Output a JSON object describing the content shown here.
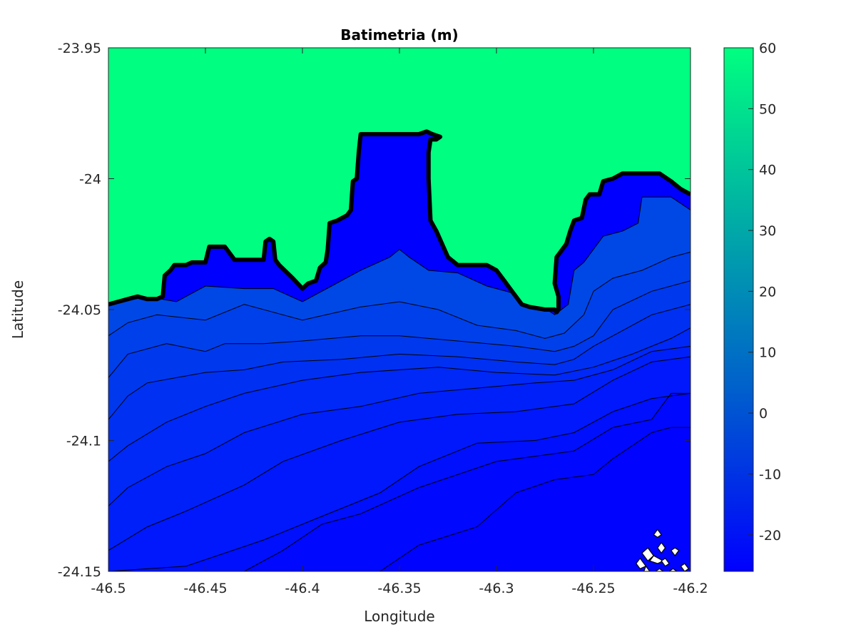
{
  "chart_data": {
    "type": "contour",
    "title": "Batimetria (m)",
    "xlabel": "Longitude",
    "ylabel": "Latitude",
    "xlim": [
      -46.5,
      -46.2
    ],
    "ylim": [
      -24.15,
      -23.95
    ],
    "xticks": [
      -46.5,
      -46.45,
      -46.4,
      -46.35,
      -46.3,
      -46.25,
      -46.2
    ],
    "xtick_labels": [
      "-46.5",
      "-46.45",
      "-46.4",
      "-46.35",
      "-46.3",
      "-46.25",
      "-46.2"
    ],
    "yticks": [
      -23.95,
      -24,
      -24.05,
      -24.1,
      -24.15
    ],
    "ytick_labels": [
      "-23.95",
      "-24",
      "-24.05",
      "-24.1",
      "-24.15"
    ],
    "grid": false,
    "colorbar": {
      "limits": [
        -26,
        60
      ],
      "ticks": [
        60,
        50,
        40,
        30,
        20,
        10,
        0,
        -10,
        -20
      ],
      "tick_labels": [
        "60",
        "50",
        "40",
        "30",
        "20",
        "10",
        "0",
        "-10",
        "-20"
      ],
      "colors": {
        "low": "#0000ff",
        "high": "#00ff80"
      }
    },
    "land_color": "#00ff80",
    "coastline": {
      "level": 0,
      "color": "#000000",
      "points": [
        [
          -46.5,
          -24.048
        ],
        [
          -46.495,
          -24.047
        ],
        [
          -46.49,
          -24.046
        ],
        [
          -46.485,
          -24.045
        ],
        [
          -46.48,
          -24.046
        ],
        [
          -46.475,
          -24.046
        ],
        [
          -46.472,
          -24.045
        ],
        [
          -46.471,
          -24.037
        ],
        [
          -46.468,
          -24.035
        ],
        [
          -46.466,
          -24.033
        ],
        [
          -46.46,
          -24.033
        ],
        [
          -46.457,
          -24.032
        ],
        [
          -46.45,
          -24.032
        ],
        [
          -46.448,
          -24.026
        ],
        [
          -46.44,
          -24.026
        ],
        [
          -46.437,
          -24.029
        ],
        [
          -46.435,
          -24.031
        ],
        [
          -46.428,
          -24.031
        ],
        [
          -46.42,
          -24.031
        ],
        [
          -46.419,
          -24.024
        ],
        [
          -46.417,
          -24.023
        ],
        [
          -46.415,
          -24.024
        ],
        [
          -46.414,
          -24.031
        ],
        [
          -46.412,
          -24.033
        ],
        [
          -46.405,
          -24.038
        ],
        [
          -46.4,
          -24.042
        ],
        [
          -46.397,
          -24.04
        ],
        [
          -46.393,
          -24.039
        ],
        [
          -46.391,
          -24.034
        ],
        [
          -46.388,
          -24.032
        ],
        [
          -46.387,
          -24.027
        ],
        [
          -46.386,
          -24.017
        ],
        [
          -46.382,
          -24.016
        ],
        [
          -46.377,
          -24.014
        ],
        [
          -46.375,
          -24.012
        ],
        [
          -46.374,
          -24.001
        ],
        [
          -46.372,
          -24.0
        ],
        [
          -46.371,
          -23.99
        ],
        [
          -46.37,
          -23.983
        ],
        [
          -46.365,
          -23.983
        ],
        [
          -46.355,
          -23.983
        ],
        [
          -46.34,
          -23.983
        ],
        [
          -46.336,
          -23.982
        ],
        [
          -46.333,
          -23.983
        ],
        [
          -46.329,
          -23.984
        ],
        [
          -46.331,
          -23.985
        ],
        [
          -46.334,
          -23.985
        ],
        [
          -46.335,
          -23.99
        ],
        [
          -46.335,
          -24.0
        ],
        [
          -46.334,
          -24.016
        ],
        [
          -46.331,
          -24.02
        ],
        [
          -46.328,
          -24.025
        ],
        [
          -46.325,
          -24.03
        ],
        [
          -46.32,
          -24.033
        ],
        [
          -46.31,
          -24.033
        ],
        [
          -46.305,
          -24.033
        ],
        [
          -46.3,
          -24.035
        ],
        [
          -46.296,
          -24.039
        ],
        [
          -46.293,
          -24.042
        ],
        [
          -46.29,
          -24.045
        ],
        [
          -46.287,
          -24.048
        ],
        [
          -46.283,
          -24.049
        ],
        [
          -46.275,
          -24.05
        ],
        [
          -46.27,
          -24.05
        ],
        [
          -46.269,
          -24.051
        ],
        [
          -46.268,
          -24.05
        ],
        [
          -46.268,
          -24.045
        ],
        [
          -46.27,
          -24.04
        ],
        [
          -46.269,
          -24.03
        ],
        [
          -46.266,
          -24.027
        ],
        [
          -46.264,
          -24.025
        ],
        [
          -46.262,
          -24.02
        ],
        [
          -46.26,
          -24.016
        ],
        [
          -46.256,
          -24.015
        ],
        [
          -46.254,
          -24.008
        ],
        [
          -46.252,
          -24.006
        ],
        [
          -46.247,
          -24.006
        ],
        [
          -46.245,
          -24.001
        ],
        [
          -46.24,
          -24.0
        ],
        [
          -46.235,
          -23.998
        ],
        [
          -46.225,
          -23.998
        ],
        [
          -46.216,
          -23.998
        ],
        [
          -46.21,
          -24.001
        ],
        [
          -46.205,
          -24.004
        ],
        [
          -46.2,
          -24.006
        ]
      ]
    },
    "contour_bands": [
      {
        "name": "band-0",
        "color": "#0048e6",
        "points": [
          [
            -46.5,
            -24.048
          ],
          [
            -46.48,
            -24.045
          ],
          [
            -46.465,
            -24.047
          ],
          [
            -46.45,
            -24.041
          ],
          [
            -46.43,
            -24.042
          ],
          [
            -46.415,
            -24.042
          ],
          [
            -46.4,
            -24.047
          ],
          [
            -46.385,
            -24.041
          ],
          [
            -46.37,
            -24.035
          ],
          [
            -46.355,
            -24.03
          ],
          [
            -46.35,
            -24.027
          ],
          [
            -46.345,
            -24.03
          ],
          [
            -46.335,
            -24.035
          ],
          [
            -46.32,
            -24.036
          ],
          [
            -46.305,
            -24.041
          ],
          [
            -46.29,
            -24.044
          ],
          [
            -46.28,
            -24.047
          ],
          [
            -46.27,
            -24.052
          ],
          [
            -46.263,
            -24.048
          ],
          [
            -46.26,
            -24.035
          ],
          [
            -46.255,
            -24.032
          ],
          [
            -46.245,
            -24.022
          ],
          [
            -46.235,
            -24.02
          ],
          [
            -46.227,
            -24.017
          ],
          [
            -46.225,
            -24.007
          ],
          [
            -46.21,
            -24.007
          ],
          [
            -46.2,
            -24.012
          ]
        ]
      },
      {
        "name": "band-1",
        "color": "#0040ea",
        "points": [
          [
            -46.5,
            -24.06
          ],
          [
            -46.49,
            -24.055
          ],
          [
            -46.475,
            -24.052
          ],
          [
            -46.45,
            -24.054
          ],
          [
            -46.43,
            -24.048
          ],
          [
            -46.4,
            -24.054
          ],
          [
            -46.37,
            -24.049
          ],
          [
            -46.35,
            -24.047
          ],
          [
            -46.33,
            -24.05
          ],
          [
            -46.31,
            -24.056
          ],
          [
            -46.29,
            -24.058
          ],
          [
            -46.275,
            -24.061
          ],
          [
            -46.265,
            -24.059
          ],
          [
            -46.255,
            -24.052
          ],
          [
            -46.25,
            -24.043
          ],
          [
            -46.24,
            -24.038
          ],
          [
            -46.225,
            -24.035
          ],
          [
            -46.21,
            -24.03
          ],
          [
            -46.2,
            -24.028
          ]
        ]
      },
      {
        "name": "band-2",
        "color": "#0038ee",
        "points": [
          [
            -46.5,
            -24.076
          ],
          [
            -46.49,
            -24.067
          ],
          [
            -46.47,
            -24.063
          ],
          [
            -46.45,
            -24.066
          ],
          [
            -46.44,
            -24.063
          ],
          [
            -46.42,
            -24.063
          ],
          [
            -46.4,
            -24.062
          ],
          [
            -46.37,
            -24.06
          ],
          [
            -46.35,
            -24.06
          ],
          [
            -46.32,
            -24.062
          ],
          [
            -46.29,
            -24.064
          ],
          [
            -46.27,
            -24.066
          ],
          [
            -46.26,
            -24.064
          ],
          [
            -46.25,
            -24.06
          ],
          [
            -46.24,
            -24.05
          ],
          [
            -46.22,
            -24.043
          ],
          [
            -46.2,
            -24.039
          ]
        ]
      },
      {
        "name": "band-3",
        "color": "#0030f2",
        "points": [
          [
            -46.5,
            -24.092
          ],
          [
            -46.49,
            -24.083
          ],
          [
            -46.48,
            -24.078
          ],
          [
            -46.45,
            -24.074
          ],
          [
            -46.43,
            -24.073
          ],
          [
            -46.41,
            -24.07
          ],
          [
            -46.38,
            -24.069
          ],
          [
            -46.35,
            -24.067
          ],
          [
            -46.32,
            -24.068
          ],
          [
            -46.29,
            -24.07
          ],
          [
            -46.27,
            -24.071
          ],
          [
            -46.26,
            -24.069
          ],
          [
            -46.25,
            -24.064
          ],
          [
            -46.235,
            -24.058
          ],
          [
            -46.22,
            -24.052
          ],
          [
            -46.2,
            -24.048
          ]
        ]
      },
      {
        "name": "band-4",
        "color": "#0028f6",
        "points": [
          [
            -46.5,
            -24.108
          ],
          [
            -46.49,
            -24.102
          ],
          [
            -46.47,
            -24.093
          ],
          [
            -46.45,
            -24.087
          ],
          [
            -46.43,
            -24.082
          ],
          [
            -46.4,
            -24.077
          ],
          [
            -46.37,
            -24.074
          ],
          [
            -46.33,
            -24.072
          ],
          [
            -46.3,
            -24.074
          ],
          [
            -46.27,
            -24.075
          ],
          [
            -46.25,
            -24.072
          ],
          [
            -46.23,
            -24.067
          ],
          [
            -46.21,
            -24.061
          ],
          [
            -46.2,
            -24.057
          ]
        ]
      },
      {
        "name": "band-5",
        "color": "#0020f9",
        "points": [
          [
            -46.5,
            -24.125
          ],
          [
            -46.49,
            -24.118
          ],
          [
            -46.47,
            -24.11
          ],
          [
            -46.45,
            -24.105
          ],
          [
            -46.43,
            -24.097
          ],
          [
            -46.4,
            -24.09
          ],
          [
            -46.37,
            -24.087
          ],
          [
            -46.34,
            -24.082
          ],
          [
            -46.31,
            -24.08
          ],
          [
            -46.28,
            -24.078
          ],
          [
            -46.26,
            -24.077
          ],
          [
            -46.24,
            -24.073
          ],
          [
            -46.22,
            -24.066
          ],
          [
            -46.2,
            -24.064
          ]
        ]
      },
      {
        "name": "band-6",
        "color": "#0018fb",
        "points": [
          [
            -46.5,
            -24.142
          ],
          [
            -46.48,
            -24.133
          ],
          [
            -46.46,
            -24.127
          ],
          [
            -46.43,
            -24.117
          ],
          [
            -46.41,
            -24.108
          ],
          [
            -46.38,
            -24.1
          ],
          [
            -46.35,
            -24.093
          ],
          [
            -46.32,
            -24.09
          ],
          [
            -46.29,
            -24.089
          ],
          [
            -46.26,
            -24.086
          ],
          [
            -46.24,
            -24.077
          ],
          [
            -46.22,
            -24.07
          ],
          [
            -46.2,
            -24.068
          ]
        ]
      },
      {
        "name": "band-7",
        "color": "#0010fd",
        "points": [
          [
            -46.5,
            -24.15
          ],
          [
            -46.46,
            -24.148
          ],
          [
            -46.42,
            -24.138
          ],
          [
            -46.39,
            -24.129
          ],
          [
            -46.36,
            -24.12
          ],
          [
            -46.34,
            -24.11
          ],
          [
            -46.31,
            -24.101
          ],
          [
            -46.28,
            -24.1
          ],
          [
            -46.26,
            -24.097
          ],
          [
            -46.24,
            -24.089
          ],
          [
            -46.22,
            -24.084
          ],
          [
            -46.2,
            -24.082
          ]
        ]
      },
      {
        "name": "band-8",
        "color": "#0008fe",
        "points": [
          [
            -46.43,
            -24.15
          ],
          [
            -46.41,
            -24.142
          ],
          [
            -46.39,
            -24.132
          ],
          [
            -46.37,
            -24.128
          ],
          [
            -46.34,
            -24.118
          ],
          [
            -46.3,
            -24.108
          ],
          [
            -46.26,
            -24.104
          ],
          [
            -46.24,
            -24.095
          ],
          [
            -46.22,
            -24.092
          ],
          [
            -46.21,
            -24.082
          ],
          [
            -46.2,
            -24.082
          ]
        ]
      },
      {
        "name": "band-9",
        "color": "#0004ff",
        "points": [
          [
            -46.36,
            -24.15
          ],
          [
            -46.34,
            -24.14
          ],
          [
            -46.31,
            -24.133
          ],
          [
            -46.29,
            -24.12
          ],
          [
            -46.27,
            -24.115
          ],
          [
            -46.25,
            -24.113
          ],
          [
            -46.24,
            -24.107
          ],
          [
            -46.22,
            -24.097
          ],
          [
            -46.21,
            -24.095
          ],
          [
            -46.2,
            -24.095
          ]
        ]
      }
    ],
    "islands": [
      [
        [
          -46.217,
          -24.134
        ],
        [
          -46.215,
          -24.136
        ],
        [
          -46.217,
          -24.137
        ],
        [
          -46.219,
          -24.136
        ]
      ],
      [
        [
          -46.215,
          -24.139
        ],
        [
          -46.213,
          -24.141
        ],
        [
          -46.215,
          -24.143
        ],
        [
          -46.217,
          -24.141
        ]
      ],
      [
        [
          -46.222,
          -24.141
        ],
        [
          -46.219,
          -24.144
        ],
        [
          -46.222,
          -24.146
        ],
        [
          -46.225,
          -24.143
        ]
      ],
      [
        [
          -46.219,
          -24.144
        ],
        [
          -46.214,
          -24.146
        ],
        [
          -46.217,
          -24.147
        ],
        [
          -46.221,
          -24.146
        ]
      ],
      [
        [
          -46.226,
          -24.145
        ],
        [
          -46.223,
          -24.148
        ],
        [
          -46.226,
          -24.149
        ],
        [
          -46.228,
          -24.147
        ]
      ],
      [
        [
          -46.223,
          -24.148
        ],
        [
          -46.221,
          -24.15
        ],
        [
          -46.224,
          -24.15
        ]
      ],
      [
        [
          -46.208,
          -24.141
        ],
        [
          -46.206,
          -24.142
        ],
        [
          -46.208,
          -24.144
        ],
        [
          -46.21,
          -24.142
        ]
      ],
      [
        [
          -46.213,
          -24.145
        ],
        [
          -46.211,
          -24.147
        ],
        [
          -46.213,
          -24.148
        ],
        [
          -46.215,
          -24.146
        ]
      ],
      [
        [
          -46.203,
          -24.147
        ],
        [
          -46.201,
          -24.149
        ],
        [
          -46.203,
          -24.15
        ],
        [
          -46.205,
          -24.148
        ]
      ],
      [
        [
          -46.209,
          -24.149
        ],
        [
          -46.207,
          -24.15
        ],
        [
          -46.211,
          -24.15
        ]
      ],
      [
        [
          -46.216,
          -24.149
        ],
        [
          -46.214,
          -24.15
        ],
        [
          -46.218,
          -24.15
        ]
      ]
    ]
  }
}
